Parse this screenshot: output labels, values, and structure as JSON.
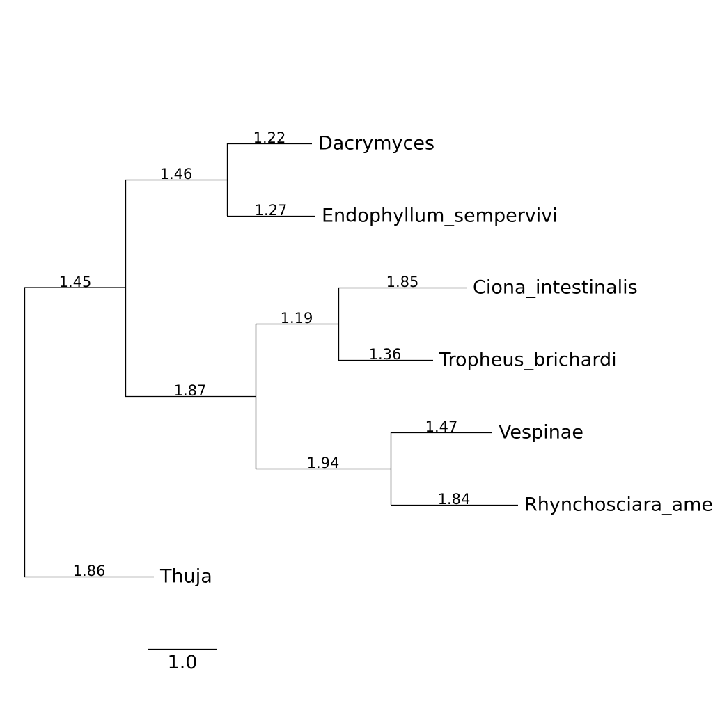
{
  "tree": {
    "root": {
      "id": "root",
      "children": [
        {
          "id": "A",
          "branch_length": "1.45",
          "children": [
            {
              "id": "A1",
              "branch_length": "1.46",
              "children": [
                {
                  "id": "dacrymyces",
                  "branch_length": "1.22",
                  "name": "Dacrymyces"
                },
                {
                  "id": "endophyllum",
                  "branch_length": "1.27",
                  "name": "Endophyllum_sempervivi"
                }
              ]
            },
            {
              "id": "A2",
              "branch_length": "1.87",
              "children": [
                {
                  "id": "A2a",
                  "branch_length": "1.19",
                  "children": [
                    {
                      "id": "ciona",
                      "branch_length": "1.85",
                      "name": "Ciona_intestinalis"
                    },
                    {
                      "id": "tropheus",
                      "branch_length": "1.36",
                      "name": "Tropheus_brichardi"
                    }
                  ]
                },
                {
                  "id": "A2b",
                  "branch_length": "1.94",
                  "children": [
                    {
                      "id": "vespinae",
                      "branch_length": "1.47",
                      "name": "Vespinae"
                    },
                    {
                      "id": "rhynchosciara",
                      "branch_length": "1.84",
                      "name": "Rhynchosciara_americana"
                    }
                  ]
                }
              ]
            }
          ]
        },
        {
          "id": "thuja",
          "branch_length": "1.86",
          "name": "Thuja"
        }
      ]
    },
    "scale_bar": {
      "label": "1.0"
    }
  }
}
